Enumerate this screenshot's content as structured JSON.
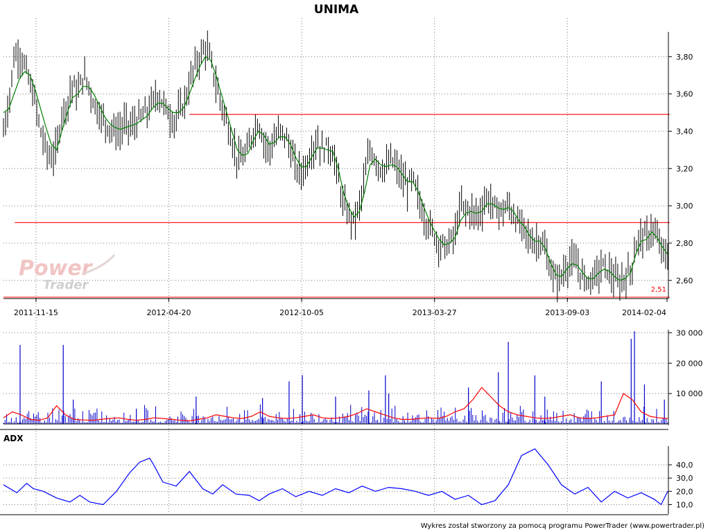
{
  "chart_data": [
    {
      "panel": "price",
      "type": "bar",
      "subtype": "ohlc",
      "title": "UNIMA",
      "x_ticks": [
        "2011-11-15",
        "2012-04-20",
        "2012-10-05",
        "2013-03-27",
        "2013-09-03",
        "2014-02-04"
      ],
      "ylim": [
        2.51,
        3.97
      ],
      "y_ticks": [
        "2,60",
        "2,80",
        "3,00",
        "3,20",
        "3,40",
        "3,60",
        "3,80"
      ],
      "y_tick_values": [
        2.6,
        2.8,
        3.0,
        3.2,
        3.4,
        3.6,
        3.8
      ],
      "grid": true,
      "close_series": [
        3.4,
        3.55,
        3.8,
        3.82,
        3.75,
        3.65,
        3.55,
        3.4,
        3.3,
        3.25,
        3.3,
        3.5,
        3.55,
        3.65,
        3.6,
        3.7,
        3.65,
        3.55,
        3.5,
        3.45,
        3.42,
        3.4,
        3.4,
        3.45,
        3.42,
        3.45,
        3.48,
        3.5,
        3.55,
        3.6,
        3.55,
        3.5,
        3.45,
        3.5,
        3.55,
        3.65,
        3.75,
        3.8,
        3.85,
        3.78,
        3.65,
        3.55,
        3.45,
        3.35,
        3.25,
        3.25,
        3.3,
        3.4,
        3.45,
        3.35,
        3.3,
        3.35,
        3.4,
        3.38,
        3.3,
        3.2,
        3.18,
        3.22,
        3.3,
        3.35,
        3.3,
        3.32,
        3.28,
        3.15,
        3.0,
        2.95,
        2.92,
        3.0,
        3.15,
        3.3,
        3.25,
        3.2,
        3.2,
        3.25,
        3.2,
        3.15,
        3.1,
        3.15,
        3.05,
        2.95,
        2.9,
        2.85,
        2.8,
        2.78,
        2.8,
        2.85,
        3.0,
        2.98,
        2.97,
        2.95,
        2.98,
        3.05,
        3.0,
        2.98,
        2.97,
        3.0,
        2.95,
        2.9,
        2.88,
        2.82,
        2.8,
        2.82,
        2.75,
        2.65,
        2.6,
        2.62,
        2.68,
        2.7,
        2.68,
        2.62,
        2.6,
        2.62,
        2.65,
        2.68,
        2.65,
        2.6,
        2.58,
        2.62,
        2.65,
        2.78,
        2.85,
        2.82,
        2.88,
        2.82,
        2.76,
        2.72
      ],
      "sma_series": [
        3.5,
        3.52,
        3.6,
        3.68,
        3.72,
        3.7,
        3.62,
        3.52,
        3.42,
        3.33,
        3.3,
        3.4,
        3.5,
        3.58,
        3.6,
        3.64,
        3.64,
        3.6,
        3.54,
        3.48,
        3.44,
        3.42,
        3.41,
        3.42,
        3.43,
        3.44,
        3.46,
        3.48,
        3.52,
        3.55,
        3.55,
        3.52,
        3.5,
        3.5,
        3.53,
        3.6,
        3.68,
        3.75,
        3.8,
        3.78,
        3.7,
        3.6,
        3.5,
        3.4,
        3.3,
        3.27,
        3.28,
        3.35,
        3.4,
        3.38,
        3.33,
        3.34,
        3.37,
        3.37,
        3.33,
        3.26,
        3.21,
        3.21,
        3.26,
        3.31,
        3.31,
        3.3,
        3.29,
        3.2,
        3.07,
        2.99,
        2.94,
        2.97,
        3.08,
        3.22,
        3.25,
        3.22,
        3.21,
        3.22,
        3.21,
        3.17,
        3.13,
        3.13,
        3.08,
        3.0,
        2.93,
        2.87,
        2.82,
        2.79,
        2.8,
        2.83,
        2.92,
        2.96,
        2.97,
        2.96,
        2.97,
        3.01,
        3.01,
        2.99,
        2.98,
        2.99,
        2.97,
        2.92,
        2.89,
        2.84,
        2.81,
        2.81,
        2.77,
        2.69,
        2.63,
        2.62,
        2.66,
        2.69,
        2.68,
        2.64,
        2.61,
        2.61,
        2.64,
        2.66,
        2.65,
        2.62,
        2.6,
        2.61,
        2.64,
        2.74,
        2.81,
        2.82,
        2.86,
        2.83,
        2.78,
        2.74
      ],
      "horizontal_levels": [
        3.49,
        2.91,
        2.51
      ],
      "low_label": "2,51",
      "low_value": 2.51,
      "colors": {
        "bars": "#000000",
        "sma": "#008000",
        "levels": "#ff0000",
        "low_line": "#ff0000"
      }
    },
    {
      "panel": "volume",
      "type": "bar",
      "y_ticks": [
        "10 000",
        "20 000",
        "30 000"
      ],
      "y_tick_values": [
        10000,
        20000,
        30000
      ],
      "ylim": [
        0,
        31000
      ],
      "spikes": [
        {
          "x": 0.025,
          "v": 26000
        },
        {
          "x": 0.09,
          "v": 26000
        },
        {
          "x": 0.105,
          "v": 8000
        },
        {
          "x": 0.2,
          "v": 5000
        },
        {
          "x": 0.29,
          "v": 9000
        },
        {
          "x": 0.39,
          "v": 8500
        },
        {
          "x": 0.43,
          "v": 14000
        },
        {
          "x": 0.45,
          "v": 16000
        },
        {
          "x": 0.5,
          "v": 9000
        },
        {
          "x": 0.55,
          "v": 11000
        },
        {
          "x": 0.575,
          "v": 16000
        },
        {
          "x": 0.58,
          "v": 10000
        },
        {
          "x": 0.7,
          "v": 12000
        },
        {
          "x": 0.745,
          "v": 17000
        },
        {
          "x": 0.76,
          "v": 27000
        },
        {
          "x": 0.8,
          "v": 16000
        },
        {
          "x": 0.815,
          "v": 9000
        },
        {
          "x": 0.9,
          "v": 14000
        },
        {
          "x": 0.945,
          "v": 28000
        },
        {
          "x": 0.95,
          "v": 30500
        },
        {
          "x": 0.965,
          "v": 13000
        },
        {
          "x": 0.995,
          "v": 8000
        }
      ],
      "avg_series": [
        2000,
        4000,
        3000,
        1500,
        1200,
        2000,
        6000,
        3000,
        1500,
        1300,
        1200,
        1500,
        1800,
        2000,
        1500,
        1200,
        1500,
        2000,
        1800,
        1500,
        1200,
        1000,
        1500,
        2000,
        3000,
        2500,
        2000,
        1800,
        2500,
        4000,
        2500,
        2000,
        1800,
        2000,
        2500,
        3000,
        2000,
        1800,
        2000,
        2500,
        3500,
        5000,
        4000,
        3000,
        2000,
        1500,
        1500,
        1800,
        2000,
        1800,
        2500,
        4000,
        5000,
        8000,
        12000,
        9000,
        6000,
        4000,
        3000,
        2500,
        2000,
        1800,
        2000,
        2500,
        3000,
        2000,
        1800,
        2000,
        2500,
        3000,
        10000,
        8000,
        4000,
        2500,
        2000,
        1800
      ],
      "colors": {
        "volume": "#0000cc",
        "avg": "#ff0000"
      }
    },
    {
      "panel": "adx",
      "type": "line",
      "title": "ADX",
      "y_ticks": [
        "10,0",
        "20,0",
        "30,0",
        "40,0"
      ],
      "y_tick_values": [
        10,
        20,
        30,
        40
      ],
      "ylim": [
        4,
        52
      ],
      "series": [
        {
          "x": [
            0,
            0.02,
            0.035,
            0.045,
            0.06,
            0.08,
            0.1,
            0.115,
            0.13,
            0.15,
            0.17,
            0.19,
            0.205,
            0.22,
            0.225,
            0.24,
            0.26,
            0.28,
            0.3,
            0.315,
            0.33,
            0.35,
            0.37,
            0.385,
            0.4,
            0.42,
            0.44,
            0.46,
            0.48,
            0.5,
            0.52,
            0.54,
            0.56,
            0.58,
            0.6,
            0.62,
            0.64,
            0.66,
            0.68,
            0.7,
            0.72,
            0.74,
            0.76,
            0.78,
            0.8,
            0.82,
            0.84,
            0.86,
            0.88,
            0.9,
            0.92,
            0.94,
            0.96,
            0.98,
            0.99,
            1.0
          ],
          "values": [
            25,
            19,
            26,
            22,
            20,
            15,
            12,
            17,
            12,
            10,
            20,
            34,
            42,
            45,
            41,
            27,
            24,
            35,
            22,
            18,
            25,
            18,
            17,
            13,
            18,
            22,
            16,
            20,
            17,
            22,
            19,
            24,
            20,
            23,
            22,
            20,
            17,
            20,
            14,
            17,
            10,
            13,
            25,
            47,
            52,
            40,
            25,
            18,
            23,
            12,
            20,
            15,
            19,
            14,
            10,
            20
          ],
          "name": ""
        }
      ],
      "color": "#0000ff"
    }
  ],
  "footer": {
    "credit": "Wykres został stworzony za pomocą programu PowerTrader (www.powertrader.pl)"
  },
  "watermark": {
    "line1": "Power",
    "line2": "Trader"
  }
}
